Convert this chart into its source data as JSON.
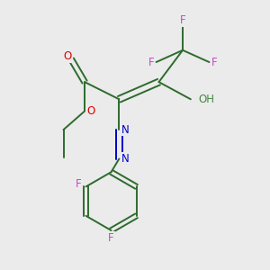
{
  "background_color": "#ebebeb",
  "bond_color": "#2d6b2d",
  "bond_width": 1.4,
  "atom_colors": {
    "F": "#cc44cc",
    "O": "#dd0000",
    "N": "#0000cc",
    "OH": "#448844",
    "C": "#2d6b2d"
  },
  "figsize": [
    3.0,
    3.0
  ],
  "dpi": 100
}
